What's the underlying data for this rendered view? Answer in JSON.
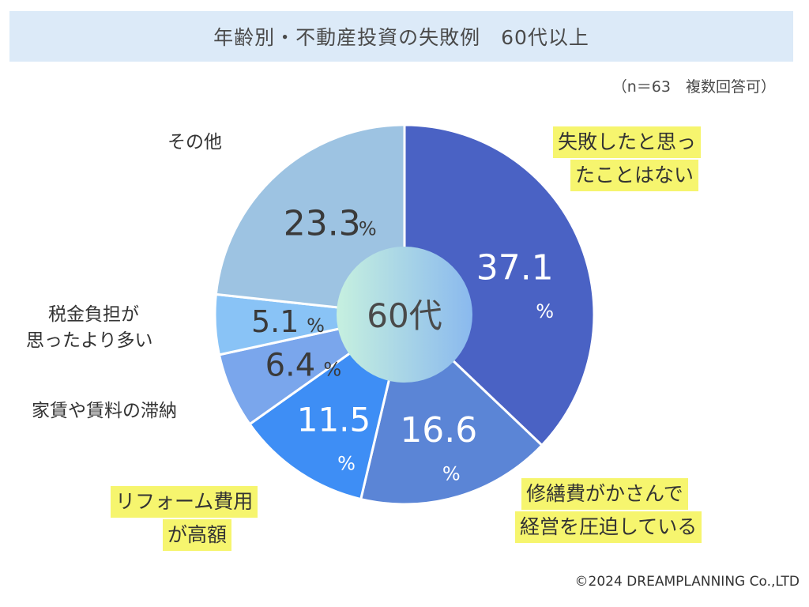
{
  "title": "年齢別・不動産投資の失敗例　60代以上",
  "note": "（n＝63　複数回答可）",
  "copyright": "©2024 DREAMPLANNING Co.,LTD",
  "center_label": "60代",
  "unit": "%",
  "chart_data": {
    "type": "pie",
    "donut": true,
    "center_label": "60代",
    "start_angle": "12 o'clock",
    "direction": "clockwise",
    "categories": [
      "失敗したと思ったことはない",
      "修繕費がかさんで経営を圧迫している",
      "リフォーム費用が高額",
      "家賃や賃料の滞納",
      "税金負担が思ったより多い",
      "その他"
    ],
    "values": [
      37.1,
      16.6,
      11.5,
      6.4,
      5.1,
      23.3
    ],
    "value_labels": [
      "37.1",
      "16.6",
      "11.5",
      "6.4",
      "5.1",
      "23.3"
    ],
    "colors": [
      "#4a62c4",
      "#5b85d6",
      "#3e8ef5",
      "#7aa6ec",
      "#89c3f6",
      "#9dc3e2"
    ],
    "center_gradient": [
      "#c6f0df",
      "#8ab9ee"
    ],
    "highlighted": [
      true,
      true,
      true,
      false,
      false,
      false
    ]
  },
  "labels": {
    "slice0": [
      "失敗したと思っ",
      "たことはない"
    ],
    "slice1": [
      "修繕費がかさんで",
      "経営を圧迫している"
    ],
    "slice2": [
      "リフォーム費用",
      "が高額"
    ],
    "slice3": [
      "家賃や賃料の滞納"
    ],
    "slice4": [
      "税金負担が",
      "思ったより多い"
    ],
    "slice5": [
      "その他"
    ]
  }
}
